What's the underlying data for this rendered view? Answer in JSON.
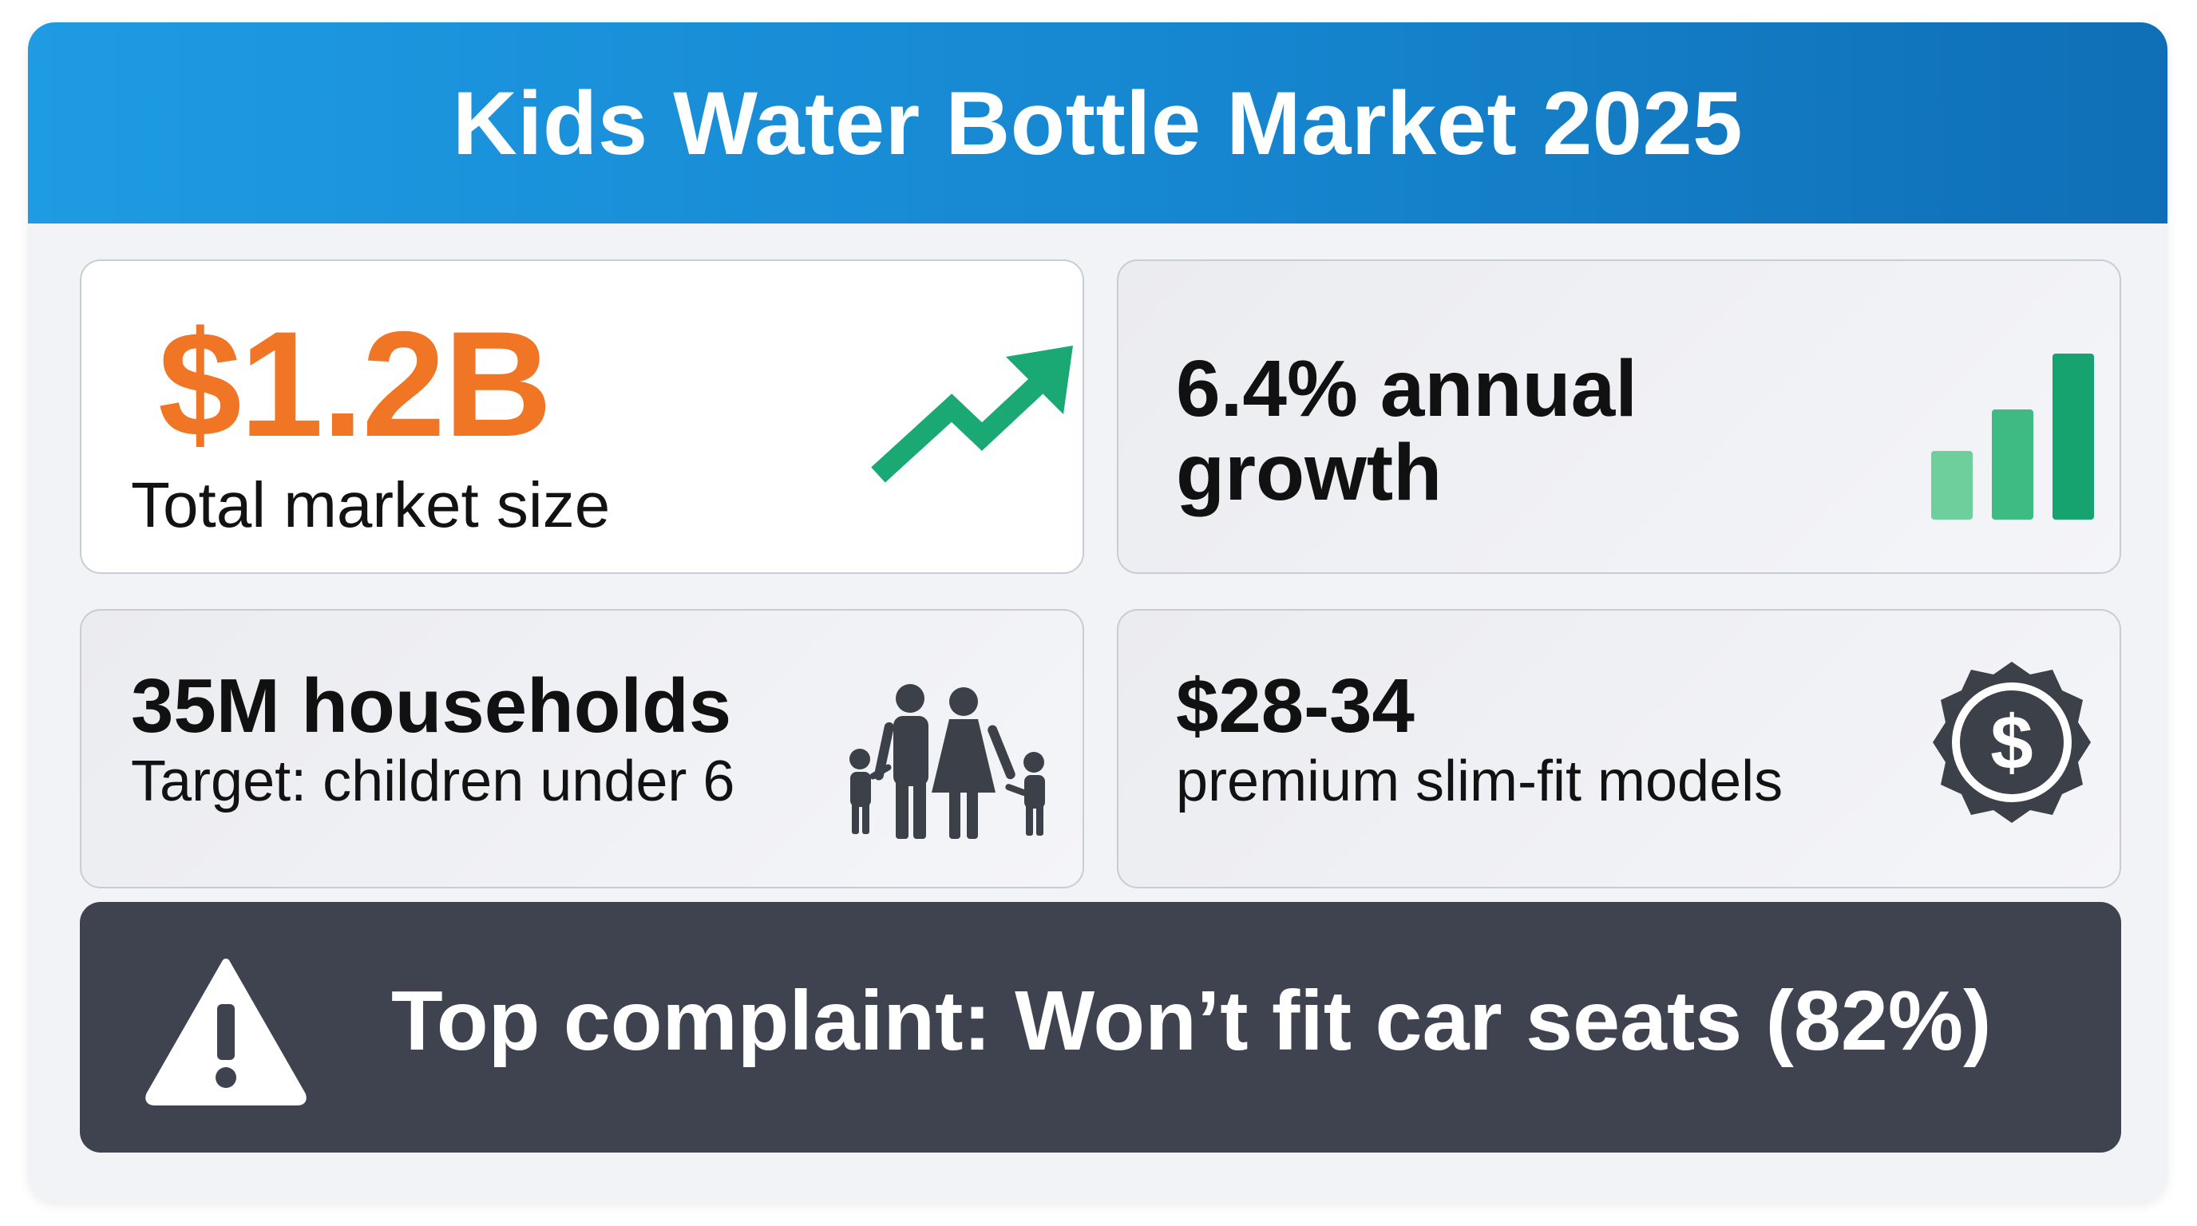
{
  "header": {
    "title": "Kids Water Bottle Market 2025"
  },
  "tiles": {
    "market_size": {
      "value": "$1.2B",
      "label": "Total market size",
      "icon": "trend-up-arrow-icon"
    },
    "growth": {
      "value": "6.4% annual growth",
      "icon": "bar-chart-icon"
    },
    "households": {
      "value": "35M households",
      "label": "Target: children under 6",
      "icon": "family-icon"
    },
    "price": {
      "value": "$28-34",
      "label": "premium slim-fit models",
      "icon": "dollar-badge-icon"
    }
  },
  "alert": {
    "text": "Top complaint: Won’t fit car seats (82%)",
    "icon": "warning-icon"
  },
  "colors": {
    "header_gradient_start": "#1e9be3",
    "header_gradient_end": "#0f6fb6",
    "accent_orange": "#f07524",
    "accent_green": "#1aa874",
    "icon_grey": "#3c4049",
    "alert_bg": "#3f4350"
  }
}
